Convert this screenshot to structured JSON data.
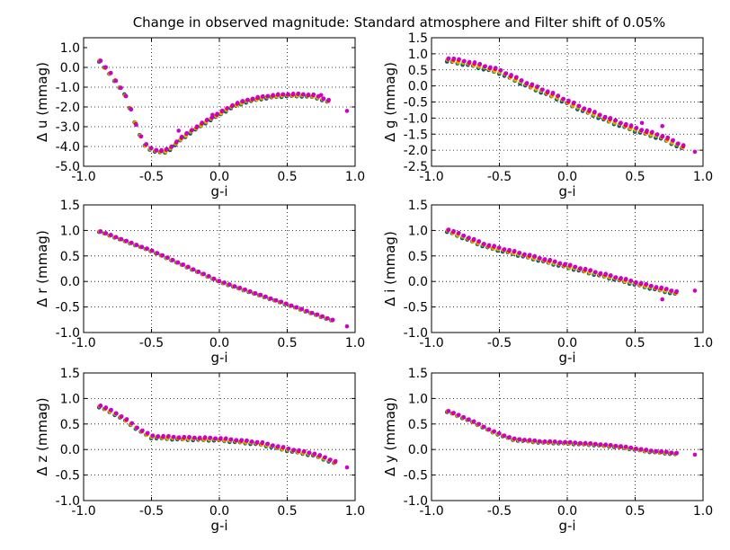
{
  "figure": {
    "title": "Change in observed magnitude: Standard atmosphere and Filter shift of 0.05%"
  },
  "colors": {
    "series": [
      "#0b3d91",
      "#1f8a2e",
      "#bcbc00",
      "#ff9f00",
      "#ff0000",
      "#cc00cc"
    ],
    "grid": "#000000",
    "axes": "#000000"
  },
  "chart_data": [
    {
      "type": "scatter",
      "panel": "u",
      "xlabel": "g-i",
      "ylabel": "Δ u (mmag)",
      "xlim": [
        -1.0,
        1.0
      ],
      "ylim": [
        -5.0,
        1.5
      ],
      "xticks": [
        -1.0,
        -0.5,
        0.0,
        0.5,
        1.0
      ],
      "yticks": [
        -5.0,
        -4.0,
        -3.0,
        -2.0,
        -1.0,
        0.0,
        1.0
      ],
      "ytick_labels": [
        "-5.0",
        "-4.0",
        "-3.0",
        "-2.0",
        "-1.0",
        "0.0",
        "1.0"
      ],
      "grid": true,
      "curve": [
        [
          -0.88,
          0.35
        ],
        [
          -0.85,
          0.05
        ],
        [
          -0.8,
          -0.35
        ],
        [
          -0.75,
          -0.85
        ],
        [
          -0.7,
          -1.3
        ],
        [
          -0.65,
          -2.2
        ],
        [
          -0.6,
          -3.2
        ],
        [
          -0.55,
          -3.9
        ],
        [
          -0.5,
          -4.15
        ],
        [
          -0.45,
          -4.25
        ],
        [
          -0.4,
          -4.25
        ],
        [
          -0.35,
          -4.05
        ],
        [
          -0.3,
          -3.7
        ],
        [
          -0.2,
          -3.2
        ],
        [
          -0.1,
          -2.75
        ],
        [
          0.0,
          -2.35
        ],
        [
          0.1,
          -1.95
        ],
        [
          0.2,
          -1.7
        ],
        [
          0.3,
          -1.55
        ],
        [
          0.4,
          -1.45
        ],
        [
          0.5,
          -1.4
        ],
        [
          0.6,
          -1.4
        ],
        [
          0.7,
          -1.45
        ],
        [
          0.8,
          -1.7
        ]
      ],
      "outliers": [
        [
          0.94,
          -2.2
        ],
        [
          -0.05,
          -2.4
        ],
        [
          -0.3,
          -3.2
        ],
        [
          0.75,
          -1.4
        ]
      ],
      "noise": 0.12
    },
    {
      "type": "scatter",
      "panel": "g",
      "xlabel": "g-i",
      "ylabel": "Δ g (mmag)",
      "xlim": [
        -1.0,
        1.0
      ],
      "ylim": [
        -2.5,
        1.5
      ],
      "xticks": [
        -1.0,
        -0.5,
        0.0,
        0.5,
        1.0
      ],
      "yticks": [
        -2.5,
        -2.0,
        -1.5,
        -1.0,
        -0.5,
        0.0,
        0.5,
        1.0,
        1.5
      ],
      "ytick_labels": [
        "-2.5",
        "-2.0",
        "-1.5",
        "-1.0",
        "-0.5",
        "0.0",
        "0.5",
        "1.0",
        "1.5"
      ],
      "grid": true,
      "curve": [
        [
          -0.88,
          0.82
        ],
        [
          -0.7,
          0.68
        ],
        [
          -0.5,
          0.45
        ],
        [
          -0.3,
          0.05
        ],
        [
          -0.1,
          -0.3
        ],
        [
          0.1,
          -0.7
        ],
        [
          0.3,
          -1.05
        ],
        [
          0.5,
          -1.35
        ],
        [
          0.7,
          -1.6
        ],
        [
          0.85,
          -1.9
        ]
      ],
      "outliers": [
        [
          0.94,
          -2.05
        ],
        [
          0.7,
          -1.25
        ],
        [
          0.55,
          -1.15
        ]
      ],
      "noise": 0.12
    },
    {
      "type": "scatter",
      "panel": "r",
      "xlabel": "g-i",
      "ylabel": "Δ r (mmag)",
      "xlim": [
        -1.0,
        1.0
      ],
      "ylim": [
        -1.0,
        1.5
      ],
      "xticks": [
        -1.0,
        -0.5,
        0.0,
        0.5,
        1.0
      ],
      "yticks": [
        -1.0,
        -0.5,
        0.0,
        0.5,
        1.0,
        1.5
      ],
      "ytick_labels": [
        "-1.0",
        "-0.5",
        "0.0",
        "0.5",
        "1.0",
        "1.5"
      ],
      "grid": true,
      "curve": [
        [
          -0.88,
          0.98
        ],
        [
          -0.5,
          0.6
        ],
        [
          0.0,
          0.0
        ],
        [
          0.5,
          -0.45
        ],
        [
          0.83,
          -0.76
        ]
      ],
      "outliers": [
        [
          0.94,
          -0.88
        ]
      ],
      "noise": 0.02
    },
    {
      "type": "scatter",
      "panel": "i",
      "xlabel": "g-i",
      "ylabel": "Δ i (mmag)",
      "xlim": [
        -1.0,
        1.0
      ],
      "ylim": [
        -1.0,
        1.5
      ],
      "xticks": [
        -1.0,
        -0.5,
        0.0,
        0.5,
        1.0
      ],
      "yticks": [
        -1.0,
        -0.5,
        0.0,
        0.5,
        1.0,
        1.5
      ],
      "ytick_labels": [
        "-1.0",
        "-0.5",
        "0.0",
        "0.5",
        "1.0",
        "1.5"
      ],
      "grid": true,
      "curve": [
        [
          -0.88,
          1.0
        ],
        [
          -0.6,
          0.7
        ],
        [
          -0.3,
          0.5
        ],
        [
          0.0,
          0.3
        ],
        [
          0.3,
          0.1
        ],
        [
          0.6,
          -0.1
        ],
        [
          0.8,
          -0.22
        ]
      ],
      "outliers": [
        [
          0.94,
          -0.18
        ],
        [
          0.7,
          -0.35
        ]
      ],
      "noise": 0.06
    },
    {
      "type": "scatter",
      "panel": "z",
      "xlabel": "g-i",
      "ylabel": "Δ z (mmag)",
      "xlim": [
        -1.0,
        1.0
      ],
      "ylim": [
        -1.0,
        1.5
      ],
      "xticks": [
        -1.0,
        -0.5,
        0.0,
        0.5,
        1.0
      ],
      "yticks": [
        -1.0,
        -0.5,
        0.0,
        0.5,
        1.0,
        1.5
      ],
      "ytick_labels": [
        "-1.0",
        "-0.5",
        "0.0",
        "0.5",
        "1.0",
        "1.5"
      ],
      "grid": true,
      "curve": [
        [
          -0.88,
          0.85
        ],
        [
          -0.8,
          0.75
        ],
        [
          -0.7,
          0.6
        ],
        [
          -0.6,
          0.4
        ],
        [
          -0.5,
          0.25
        ],
        [
          -0.3,
          0.22
        ],
        [
          0.0,
          0.2
        ],
        [
          0.3,
          0.12
        ],
        [
          0.5,
          0.0
        ],
        [
          0.7,
          -0.1
        ],
        [
          0.85,
          -0.25
        ]
      ],
      "outliers": [
        [
          0.94,
          -0.35
        ]
      ],
      "noise": 0.05
    },
    {
      "type": "scatter",
      "panel": "y",
      "xlabel": "g-i",
      "ylabel": "Δ y (mmag)",
      "xlim": [
        -1.0,
        1.0
      ],
      "ylim": [
        -1.0,
        1.5
      ],
      "xticks": [
        -1.0,
        -0.5,
        0.0,
        0.5,
        1.0
      ],
      "yticks": [
        -1.0,
        -0.5,
        0.0,
        0.5,
        1.0,
        1.5
      ],
      "ytick_labels": [
        "-1.0",
        "-0.5",
        "0.0",
        "0.5",
        "1.0",
        "1.5"
      ],
      "grid": true,
      "curve": [
        [
          -0.88,
          0.75
        ],
        [
          -0.7,
          0.55
        ],
        [
          -0.55,
          0.35
        ],
        [
          -0.4,
          0.2
        ],
        [
          -0.2,
          0.15
        ],
        [
          0.0,
          0.13
        ],
        [
          0.2,
          0.1
        ],
        [
          0.4,
          0.05
        ],
        [
          0.6,
          -0.03
        ],
        [
          0.8,
          -0.08
        ]
      ],
      "outliers": [
        [
          0.94,
          -0.1
        ]
      ],
      "noise": 0.03
    }
  ]
}
